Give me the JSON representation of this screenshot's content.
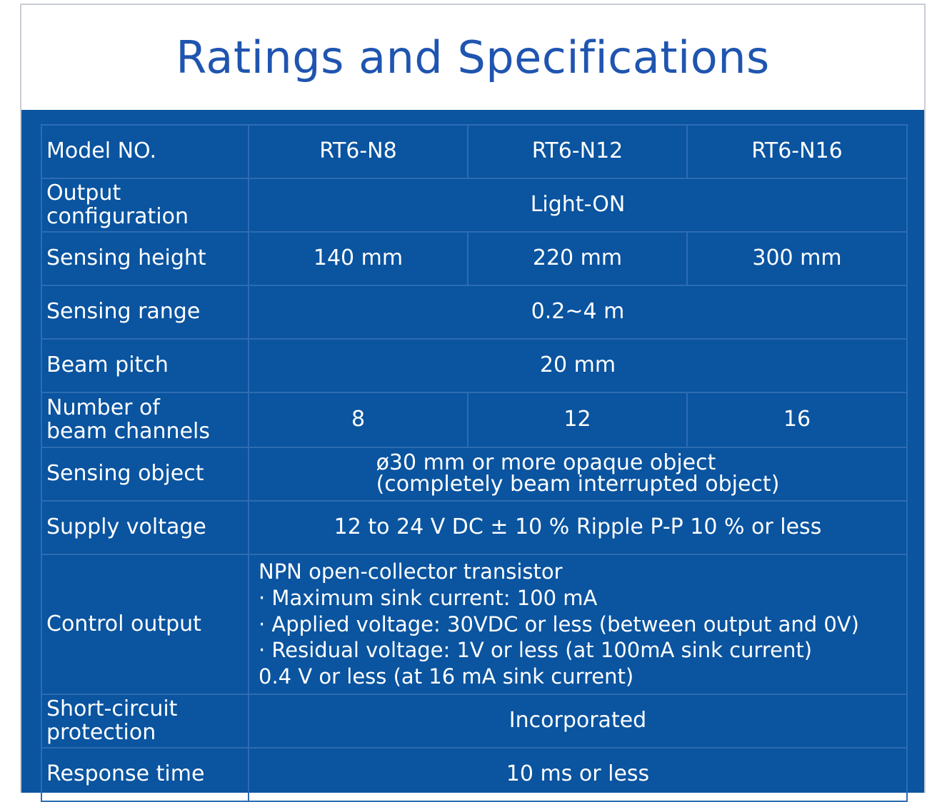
{
  "title": "Ratings and Specifications",
  "colors": {
    "title": "#1f55b0",
    "panel": "#0a54a0",
    "grid": "#2d6cb2"
  },
  "table": {
    "model": {
      "label": "Model NO.",
      "values": [
        "RT6-N8",
        "RT6-N12",
        "RT6-N16"
      ]
    },
    "output_configuration": {
      "label_line1": "Output",
      "label_line2": "configuration",
      "value": "Light-ON"
    },
    "sensing_height": {
      "label": "Sensing height",
      "values": [
        "140 mm",
        "220 mm",
        "300 mm"
      ]
    },
    "sensing_range": {
      "label": "Sensing range",
      "value": "0.2~4 m"
    },
    "beam_pitch": {
      "label": "Beam pitch",
      "value": "20 mm"
    },
    "beam_channels": {
      "label_line1": "Number of",
      "label_line2": "beam channels",
      "values": [
        "8",
        "12",
        "16"
      ]
    },
    "sensing_object": {
      "label": "Sensing object",
      "line1": "ø30 mm or more opaque object",
      "line2": "(completely beam interrupted object)"
    },
    "supply_voltage": {
      "label": "Supply voltage",
      "value": "12 to 24 V DC ± 10 % Ripple P-P 10 % or less"
    },
    "control_output": {
      "label": "Control output",
      "lines": [
        "NPN open-collector transistor",
        "· Maximum sink current: 100 mA",
        "· Applied voltage: 30VDC or less (between output and 0V)",
        "· Residual voltage: 1V or less (at 100mA sink current)",
        "0.4 V or less (at 16 mA sink current)"
      ]
    },
    "short_circuit": {
      "label_line1": "Short-circuit",
      "label_line2": "protection",
      "value": "Incorporated"
    },
    "response_time": {
      "label": "Response time",
      "value": "10 ms or less"
    }
  }
}
